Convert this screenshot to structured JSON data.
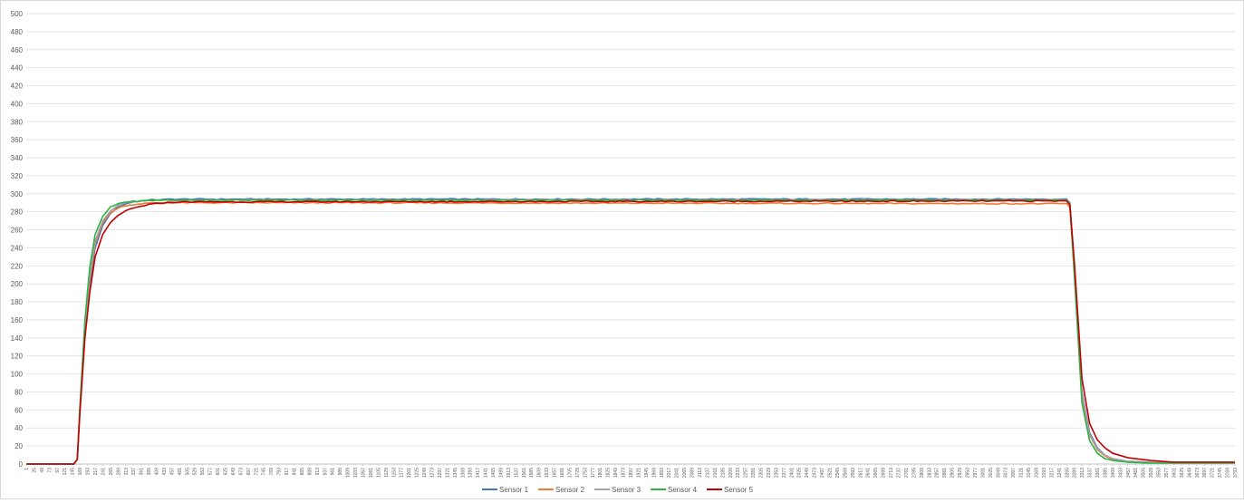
{
  "chart_data": {
    "type": "line",
    "title": "",
    "xlabel": "",
    "ylabel": "",
    "ylim": [
      0,
      500
    ],
    "yticks": [
      0,
      20,
      40,
      60,
      80,
      100,
      120,
      140,
      160,
      180,
      200,
      220,
      240,
      260,
      280,
      300,
      320,
      340,
      360,
      380,
      400,
      420,
      440,
      460,
      480,
      500
    ],
    "x_start": 1,
    "x_end": 3793,
    "x_tick_step": 24,
    "grid": true,
    "legend_position": "bottom",
    "series": [
      {
        "name": "Sensor 1",
        "color": "#4472C4",
        "points": [
          [
            1,
            0
          ],
          [
            150,
            0
          ],
          [
            161,
            5
          ],
          [
            169,
            60
          ],
          [
            185,
            150
          ],
          [
            200,
            200
          ],
          [
            217,
            240
          ],
          [
            241,
            265
          ],
          [
            265,
            278
          ],
          [
            289,
            285
          ],
          [
            313,
            289
          ],
          [
            337,
            291
          ],
          [
            385,
            293
          ],
          [
            457,
            294
          ],
          [
            3265,
            294
          ],
          [
            3275,
            290
          ],
          [
            3289,
            220
          ],
          [
            3313,
            80
          ],
          [
            3337,
            35
          ],
          [
            3361,
            18
          ],
          [
            3385,
            10
          ],
          [
            3409,
            6
          ],
          [
            3457,
            3
          ],
          [
            3529,
            2
          ],
          [
            3793,
            2
          ]
        ]
      },
      {
        "name": "Sensor 2",
        "color": "#ED7D31",
        "points": [
          [
            1,
            0
          ],
          [
            150,
            0
          ],
          [
            161,
            5
          ],
          [
            169,
            60
          ],
          [
            185,
            150
          ],
          [
            200,
            205
          ],
          [
            217,
            245
          ],
          [
            241,
            268
          ],
          [
            265,
            279
          ],
          [
            289,
            284
          ],
          [
            313,
            287
          ],
          [
            361,
            289
          ],
          [
            409,
            290
          ],
          [
            1000,
            290
          ],
          [
            3265,
            289
          ],
          [
            3275,
            285
          ],
          [
            3289,
            215
          ],
          [
            3313,
            75
          ],
          [
            3337,
            32
          ],
          [
            3361,
            16
          ],
          [
            3385,
            9
          ],
          [
            3409,
            5
          ],
          [
            3457,
            3
          ],
          [
            3529,
            2
          ],
          [
            3793,
            2
          ]
        ]
      },
      {
        "name": "Sensor 3",
        "color": "#A5A5A5",
        "points": [
          [
            1,
            0
          ],
          [
            150,
            0
          ],
          [
            161,
            5
          ],
          [
            169,
            60
          ],
          [
            185,
            152
          ],
          [
            200,
            208
          ],
          [
            217,
            248
          ],
          [
            241,
            270
          ],
          [
            265,
            281
          ],
          [
            289,
            287
          ],
          [
            313,
            290
          ],
          [
            361,
            292
          ],
          [
            433,
            293
          ],
          [
            3265,
            293
          ],
          [
            3275,
            289
          ],
          [
            3289,
            218
          ],
          [
            3313,
            78
          ],
          [
            3337,
            33
          ],
          [
            3361,
            17
          ],
          [
            3385,
            10
          ],
          [
            3409,
            6
          ],
          [
            3457,
            3
          ],
          [
            3529,
            2
          ],
          [
            3793,
            2
          ]
        ]
      },
      {
        "name": "Sensor 4",
        "color": "#2EB24A",
        "points": [
          [
            1,
            0
          ],
          [
            150,
            0
          ],
          [
            161,
            5
          ],
          [
            169,
            62
          ],
          [
            185,
            160
          ],
          [
            200,
            218
          ],
          [
            217,
            255
          ],
          [
            241,
            275
          ],
          [
            265,
            285
          ],
          [
            289,
            289
          ],
          [
            313,
            291
          ],
          [
            361,
            292
          ],
          [
            409,
            293
          ],
          [
            3265,
            293
          ],
          [
            3275,
            289
          ],
          [
            3289,
            210
          ],
          [
            3313,
            68
          ],
          [
            3337,
            26
          ],
          [
            3361,
            12
          ],
          [
            3385,
            6
          ],
          [
            3409,
            4
          ],
          [
            3457,
            2
          ],
          [
            3529,
            1
          ],
          [
            3793,
            1
          ]
        ]
      },
      {
        "name": "Sensor 5",
        "color": "#C00000",
        "points": [
          [
            1,
            0
          ],
          [
            150,
            0
          ],
          [
            161,
            5
          ],
          [
            169,
            55
          ],
          [
            185,
            140
          ],
          [
            200,
            190
          ],
          [
            217,
            230
          ],
          [
            241,
            255
          ],
          [
            265,
            268
          ],
          [
            289,
            276
          ],
          [
            313,
            281
          ],
          [
            337,
            284
          ],
          [
            385,
            288
          ],
          [
            433,
            290
          ],
          [
            481,
            291
          ],
          [
            3265,
            292
          ],
          [
            3275,
            288
          ],
          [
            3289,
            225
          ],
          [
            3313,
            95
          ],
          [
            3337,
            45
          ],
          [
            3361,
            27
          ],
          [
            3385,
            18
          ],
          [
            3409,
            12
          ],
          [
            3457,
            7
          ],
          [
            3529,
            4
          ],
          [
            3601,
            2
          ],
          [
            3793,
            2
          ]
        ]
      }
    ]
  }
}
